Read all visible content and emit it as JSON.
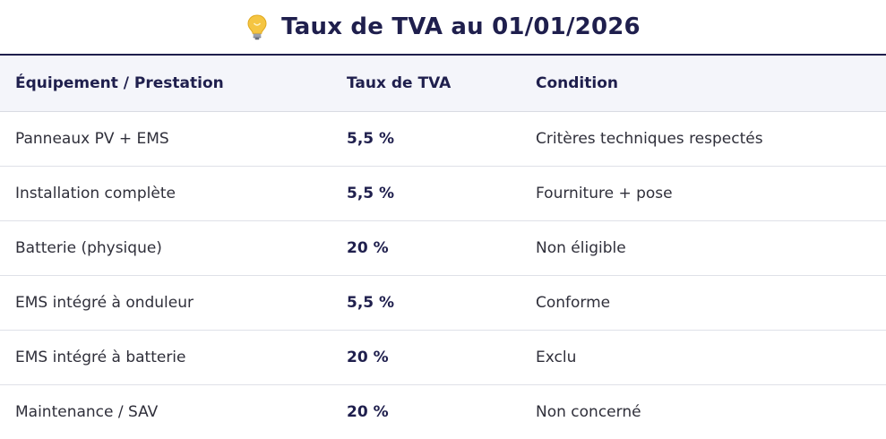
{
  "header": {
    "icon": "lightbulb-icon",
    "title": "Taux de TVA au 01/01/2026"
  },
  "table": {
    "columns": [
      "Équipement / Prestation",
      "Taux de TVA",
      "Condition"
    ],
    "rows": [
      {
        "item": "Panneaux PV + EMS",
        "rate": "5,5 %",
        "condition": "Critères techniques respectés"
      },
      {
        "item": "Installation complète",
        "rate": "5,5 %",
        "condition": "Fourniture + pose"
      },
      {
        "item": "Batterie (physique)",
        "rate": "20 %",
        "condition": "Non éligible"
      },
      {
        "item": "EMS intégré à onduleur",
        "rate": "5,5 %",
        "condition": "Conforme"
      },
      {
        "item": "EMS intégré à batterie",
        "rate": "20 %",
        "condition": "Exclu"
      },
      {
        "item": "Maintenance / SAV",
        "rate": "20 %",
        "condition": "Non concerné"
      }
    ]
  },
  "colors": {
    "title": "#1f1f4d",
    "header_bg": "#f4f5fa",
    "bulb": "#f5c542"
  }
}
